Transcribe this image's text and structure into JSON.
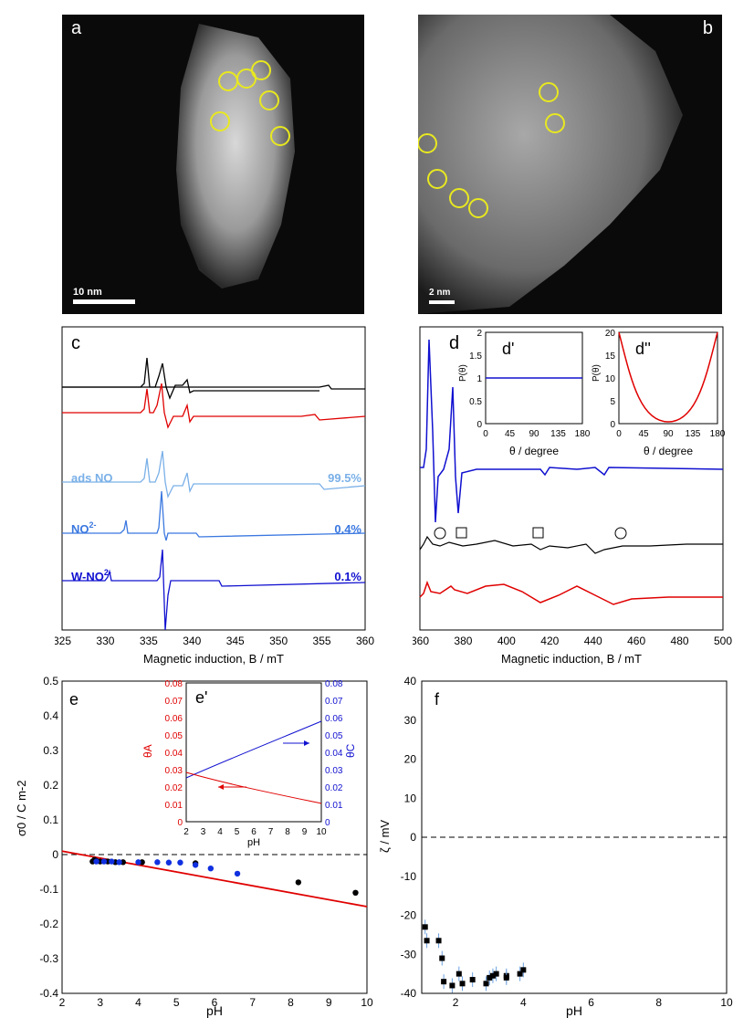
{
  "panel_a": {
    "label": "a",
    "scale": "10 nm"
  },
  "panel_b": {
    "label": "b",
    "scale": "2 nm"
  },
  "panel_c": {
    "label": "c",
    "xlabel": "Magnetic induction, B / mT",
    "xticks": [
      "325",
      "330",
      "335",
      "340",
      "345",
      "350",
      "355",
      "360"
    ],
    "components": [
      {
        "name": "ads NO",
        "percent": "99.5%",
        "color": "#7ab0e8"
      },
      {
        "name": "NO",
        "sup": "2-",
        "percent": "0.4%",
        "color": "#3b78e0"
      },
      {
        "name": "W-NO",
        "sup": "2-",
        "percent": "0.1%",
        "color": "#1010d0"
      }
    ]
  },
  "panel_d": {
    "label": "d",
    "xlabel": "Magnetic induction, B / mT",
    "xticks": [
      "360",
      "380",
      "400",
      "420",
      "440",
      "460",
      "480",
      "500"
    ],
    "inset1": {
      "label": "d'",
      "ylabel": "P(θ)",
      "xlabel": "θ / degree",
      "yticks": [
        "0",
        "0.5",
        "1",
        "1.5",
        "2"
      ],
      "xticks": [
        "0",
        "45",
        "90",
        "135",
        "180"
      ]
    },
    "inset2": {
      "label": "d''",
      "ylabel": "P(θ)",
      "xlabel": "θ / degree",
      "yticks": [
        "0",
        "5",
        "10",
        "15",
        "20"
      ],
      "xticks": [
        "0",
        "45",
        "90",
        "135",
        "180"
      ]
    }
  },
  "panel_e": {
    "label": "e",
    "ylabel": "σ0 / C m-2",
    "xlabel": "pH",
    "xticks": [
      "2",
      "3",
      "4",
      "5",
      "6",
      "7",
      "8",
      "9",
      "10"
    ],
    "yticks": [
      "0.5",
      "0.4",
      "0.3",
      "0.2",
      "0.1",
      "0",
      "-0.1",
      "-0.2",
      "-0.3",
      "-0.4"
    ],
    "inset": {
      "label": "e'",
      "xlabel": "pH",
      "ylabel_left": "θA",
      "ylabel_right": "θC",
      "yticks": [
        "0",
        "0.01",
        "0.02",
        "0.03",
        "0.04",
        "0.05",
        "0.06",
        "0.07",
        "0.08"
      ],
      "xticks": [
        "2",
        "3",
        "4",
        "5",
        "6",
        "7",
        "8",
        "9",
        "10"
      ]
    },
    "chart_data": {
      "type": "scatter",
      "series": [
        {
          "points": [
            [
              2.8,
              -0.02
            ],
            [
              2.85,
              -0.015
            ],
            [
              2.9,
              -0.018
            ],
            [
              3.0,
              -0.02
            ],
            [
              3.2,
              -0.02
            ],
            [
              3.4,
              -0.022
            ],
            [
              3.6,
              -0.022
            ],
            [
              4.1,
              -0.022
            ],
            [
              5.5,
              -0.025
            ],
            [
              8.2,
              -0.08
            ],
            [
              9.7,
              -0.11
            ]
          ],
          "color": "#000000"
        },
        {
          "points": [
            [
              2.9,
              -0.02
            ],
            [
              3.1,
              -0.02
            ],
            [
              3.3,
              -0.02
            ],
            [
              3.5,
              -0.022
            ],
            [
              4.0,
              -0.022
            ],
            [
              4.5,
              -0.022
            ],
            [
              4.8,
              -0.023
            ],
            [
              5.1,
              -0.023
            ],
            [
              5.5,
              -0.03
            ],
            [
              5.9,
              -0.04
            ],
            [
              6.6,
              -0.055
            ]
          ],
          "color": "#1030e0"
        }
      ],
      "line": {
        "x": [
          2,
          10
        ],
        "y": [
          0.01,
          -0.15
        ],
        "color": "#e00000"
      },
      "xlim": [
        2,
        10
      ],
      "ylim": [
        -0.4,
        0.5
      ]
    }
  },
  "panel_f": {
    "label": "f",
    "ylabel": "ζ / mV",
    "xlabel": "pH",
    "xticks": [
      "2",
      "4",
      "6",
      "8",
      "10"
    ],
    "yticks": [
      "40",
      "30",
      "20",
      "10",
      "0",
      "-10",
      "-20",
      "-30",
      "-40"
    ],
    "chart_data": {
      "type": "scatter",
      "points": [
        [
          1.1,
          -23
        ],
        [
          1.15,
          -26.5
        ],
        [
          1.5,
          -26.5
        ],
        [
          1.6,
          -31
        ],
        [
          1.65,
          -37
        ],
        [
          1.9,
          -38
        ],
        [
          2.1,
          -35
        ],
        [
          2.2,
          -37.5
        ],
        [
          2.5,
          -36.5
        ],
        [
          2.9,
          -37.5
        ],
        [
          3.0,
          -36
        ],
        [
          3.1,
          -35.5
        ],
        [
          3.2,
          -35
        ],
        [
          3.5,
          -35.5
        ],
        [
          3.5,
          -36
        ],
        [
          3.9,
          -35
        ],
        [
          4.0,
          -34
        ]
      ],
      "xlim": [
        1,
        10
      ],
      "ylim": [
        -40,
        40
      ]
    }
  }
}
